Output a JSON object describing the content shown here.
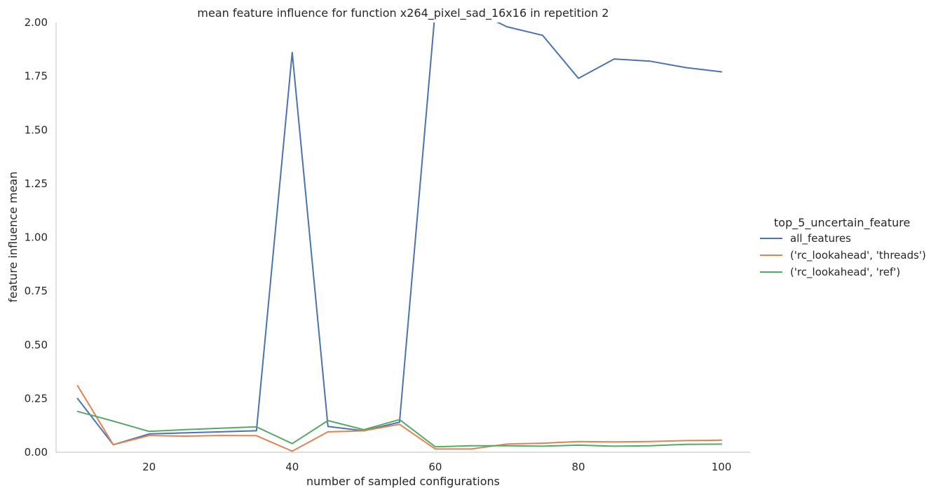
{
  "chart_data": {
    "type": "line",
    "title": "mean feature influence for function x264_pixel_sad_16x16 in repetition 2",
    "xlabel": "number of sampled configurations",
    "ylabel": "feature influence mean",
    "xlim": [
      7,
      104
    ],
    "ylim": [
      0,
      2.0
    ],
    "x_ticks": [
      20,
      40,
      60,
      80,
      100
    ],
    "y_ticks": [
      0.0,
      0.25,
      0.5,
      0.75,
      1.0,
      1.25,
      1.5,
      1.75,
      2.0
    ],
    "y_tick_labels": [
      "0.00",
      "0.25",
      "0.50",
      "0.75",
      "1.00",
      "1.25",
      "1.50",
      "1.75",
      "2.00"
    ],
    "x_tick_labels": [
      "20",
      "40",
      "60",
      "80",
      "100"
    ],
    "grid": false,
    "legend_placement": "right",
    "legend_title": "top_5_uncertain_feature",
    "x": [
      10,
      15,
      20,
      25,
      30,
      35,
      40,
      45,
      50,
      55,
      60,
      65,
      70,
      75,
      80,
      85,
      90,
      95,
      100
    ],
    "series": [
      {
        "name": "all_features",
        "color": "#4c72b0",
        "values": [
          0.25,
          0.035,
          0.085,
          0.09,
          0.095,
          0.1,
          1.86,
          0.12,
          0.1,
          0.14,
          2.06,
          2.06,
          1.98,
          1.94,
          1.74,
          1.83,
          1.82,
          1.79,
          1.77
        ]
      },
      {
        "name": "('rc_lookahead', 'threads')",
        "color": "#dd8452",
        "values": [
          0.31,
          0.035,
          0.078,
          0.075,
          0.078,
          0.077,
          0.005,
          0.095,
          0.1,
          0.13,
          0.015,
          0.015,
          0.038,
          0.042,
          0.05,
          0.048,
          0.05,
          0.054,
          0.056
        ]
      },
      {
        "name": "('rc_lookahead', 'ref')",
        "color": "#55a868",
        "values": [
          0.19,
          0.145,
          0.097,
          0.105,
          0.112,
          0.118,
          0.04,
          0.147,
          0.105,
          0.152,
          0.025,
          0.03,
          0.03,
          0.028,
          0.033,
          0.028,
          0.03,
          0.037,
          0.038
        ]
      }
    ]
  }
}
